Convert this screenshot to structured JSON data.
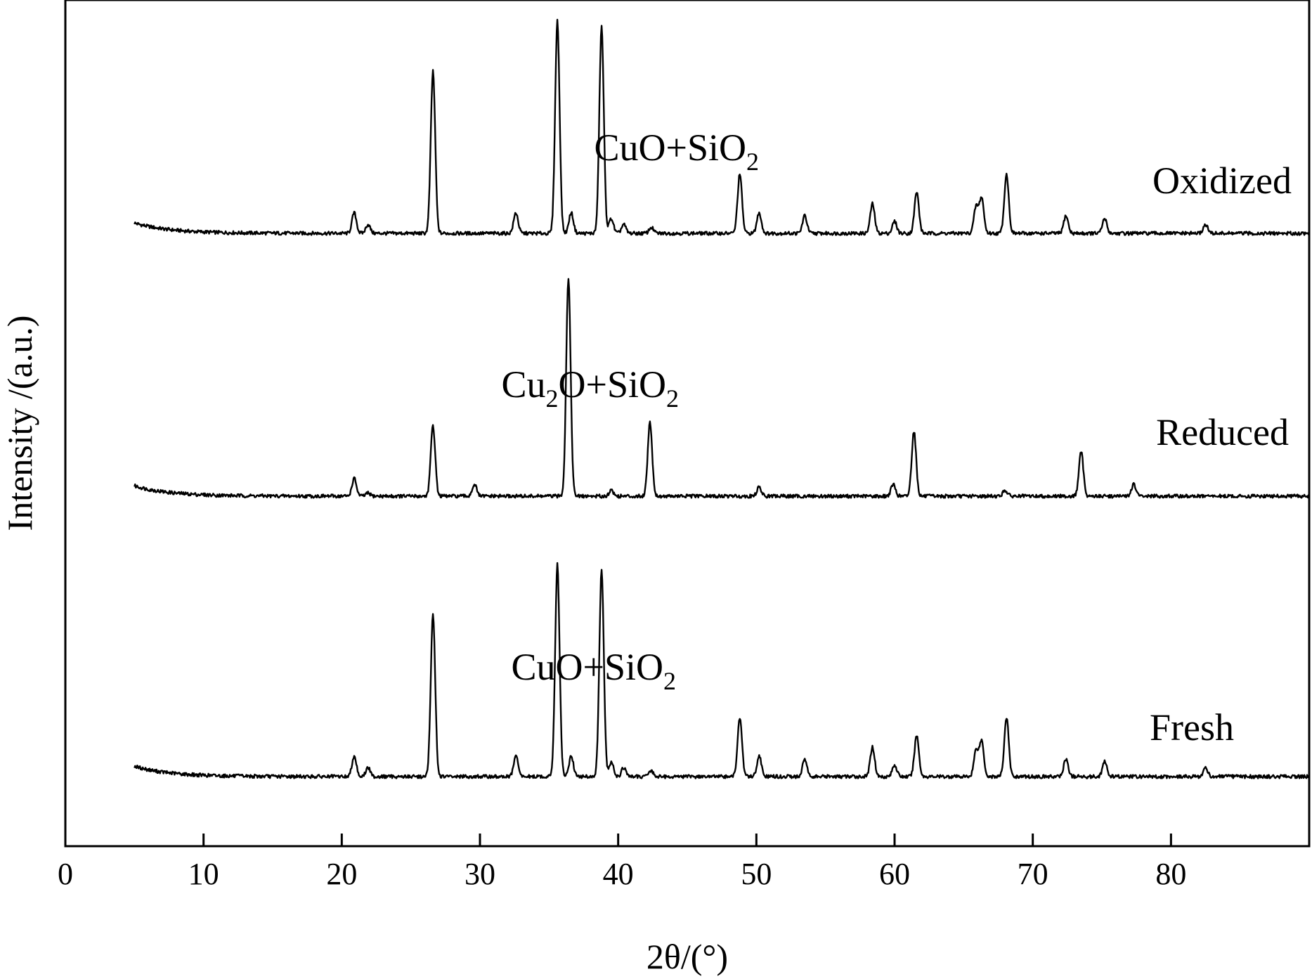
{
  "chart_data": {
    "type": "line",
    "xlabel": "2θ/(°)",
    "ylabel": "Intensity /(a.u.)",
    "xlim": [
      0,
      90
    ],
    "xticks": [
      "0",
      "10",
      "20",
      "30",
      "40",
      "50",
      "60",
      "70",
      "80"
    ],
    "yticks": [],
    "legend": "none",
    "x_range": [
      5,
      90
    ],
    "series": [
      {
        "name": "Oxidized",
        "phase_label": {
          "main": "CuO+SiO",
          "sub": "2"
        },
        "baseline": 0,
        "peaks": [
          {
            "x": 20.9,
            "h": 0.07
          },
          {
            "x": 21.9,
            "h": 0.03
          },
          {
            "x": 26.6,
            "h": 0.55
          },
          {
            "x": 32.6,
            "h": 0.07
          },
          {
            "x": 35.6,
            "h": 0.72
          },
          {
            "x": 36.6,
            "h": 0.07
          },
          {
            "x": 38.8,
            "h": 0.7
          },
          {
            "x": 39.5,
            "h": 0.05
          },
          {
            "x": 40.4,
            "h": 0.03
          },
          {
            "x": 42.4,
            "h": 0.02
          },
          {
            "x": 48.8,
            "h": 0.2
          },
          {
            "x": 50.2,
            "h": 0.07
          },
          {
            "x": 53.5,
            "h": 0.06
          },
          {
            "x": 58.4,
            "h": 0.1
          },
          {
            "x": 60.0,
            "h": 0.04
          },
          {
            "x": 61.6,
            "h": 0.14
          },
          {
            "x": 65.9,
            "h": 0.09
          },
          {
            "x": 66.3,
            "h": 0.12
          },
          {
            "x": 68.1,
            "h": 0.2
          },
          {
            "x": 72.4,
            "h": 0.06
          },
          {
            "x": 75.2,
            "h": 0.05
          },
          {
            "x": 82.5,
            "h": 0.03
          }
        ]
      },
      {
        "name": "Reduced",
        "phase_label": {
          "main": "Cu",
          "sub": "2",
          "tail": "O+SiO",
          "sub2": "2"
        },
        "baseline": 0,
        "peaks": [
          {
            "x": 20.9,
            "h": 0.06
          },
          {
            "x": 21.9,
            "h": 0.01
          },
          {
            "x": 26.6,
            "h": 0.24
          },
          {
            "x": 29.6,
            "h": 0.04
          },
          {
            "x": 36.4,
            "h": 0.74
          },
          {
            "x": 39.5,
            "h": 0.02
          },
          {
            "x": 42.3,
            "h": 0.25
          },
          {
            "x": 50.2,
            "h": 0.03
          },
          {
            "x": 59.9,
            "h": 0.04
          },
          {
            "x": 61.4,
            "h": 0.22
          },
          {
            "x": 68.0,
            "h": 0.02
          },
          {
            "x": 73.5,
            "h": 0.15
          },
          {
            "x": 77.3,
            "h": 0.04
          }
        ]
      },
      {
        "name": "Fresh",
        "phase_label": {
          "main": "CuO+SiO",
          "sub": "2"
        },
        "baseline": 0,
        "peaks": [
          {
            "x": 20.9,
            "h": 0.07
          },
          {
            "x": 21.9,
            "h": 0.03
          },
          {
            "x": 26.6,
            "h": 0.55
          },
          {
            "x": 32.6,
            "h": 0.07
          },
          {
            "x": 35.6,
            "h": 0.72
          },
          {
            "x": 36.6,
            "h": 0.07
          },
          {
            "x": 38.8,
            "h": 0.7
          },
          {
            "x": 39.5,
            "h": 0.05
          },
          {
            "x": 40.4,
            "h": 0.03
          },
          {
            "x": 42.4,
            "h": 0.02
          },
          {
            "x": 48.8,
            "h": 0.2
          },
          {
            "x": 50.2,
            "h": 0.07
          },
          {
            "x": 53.5,
            "h": 0.06
          },
          {
            "x": 58.4,
            "h": 0.1
          },
          {
            "x": 60.0,
            "h": 0.04
          },
          {
            "x": 61.6,
            "h": 0.14
          },
          {
            "x": 65.9,
            "h": 0.09
          },
          {
            "x": 66.3,
            "h": 0.12
          },
          {
            "x": 68.1,
            "h": 0.2
          },
          {
            "x": 72.4,
            "h": 0.06
          },
          {
            "x": 75.2,
            "h": 0.05
          },
          {
            "x": 82.5,
            "h": 0.03
          }
        ]
      }
    ]
  }
}
